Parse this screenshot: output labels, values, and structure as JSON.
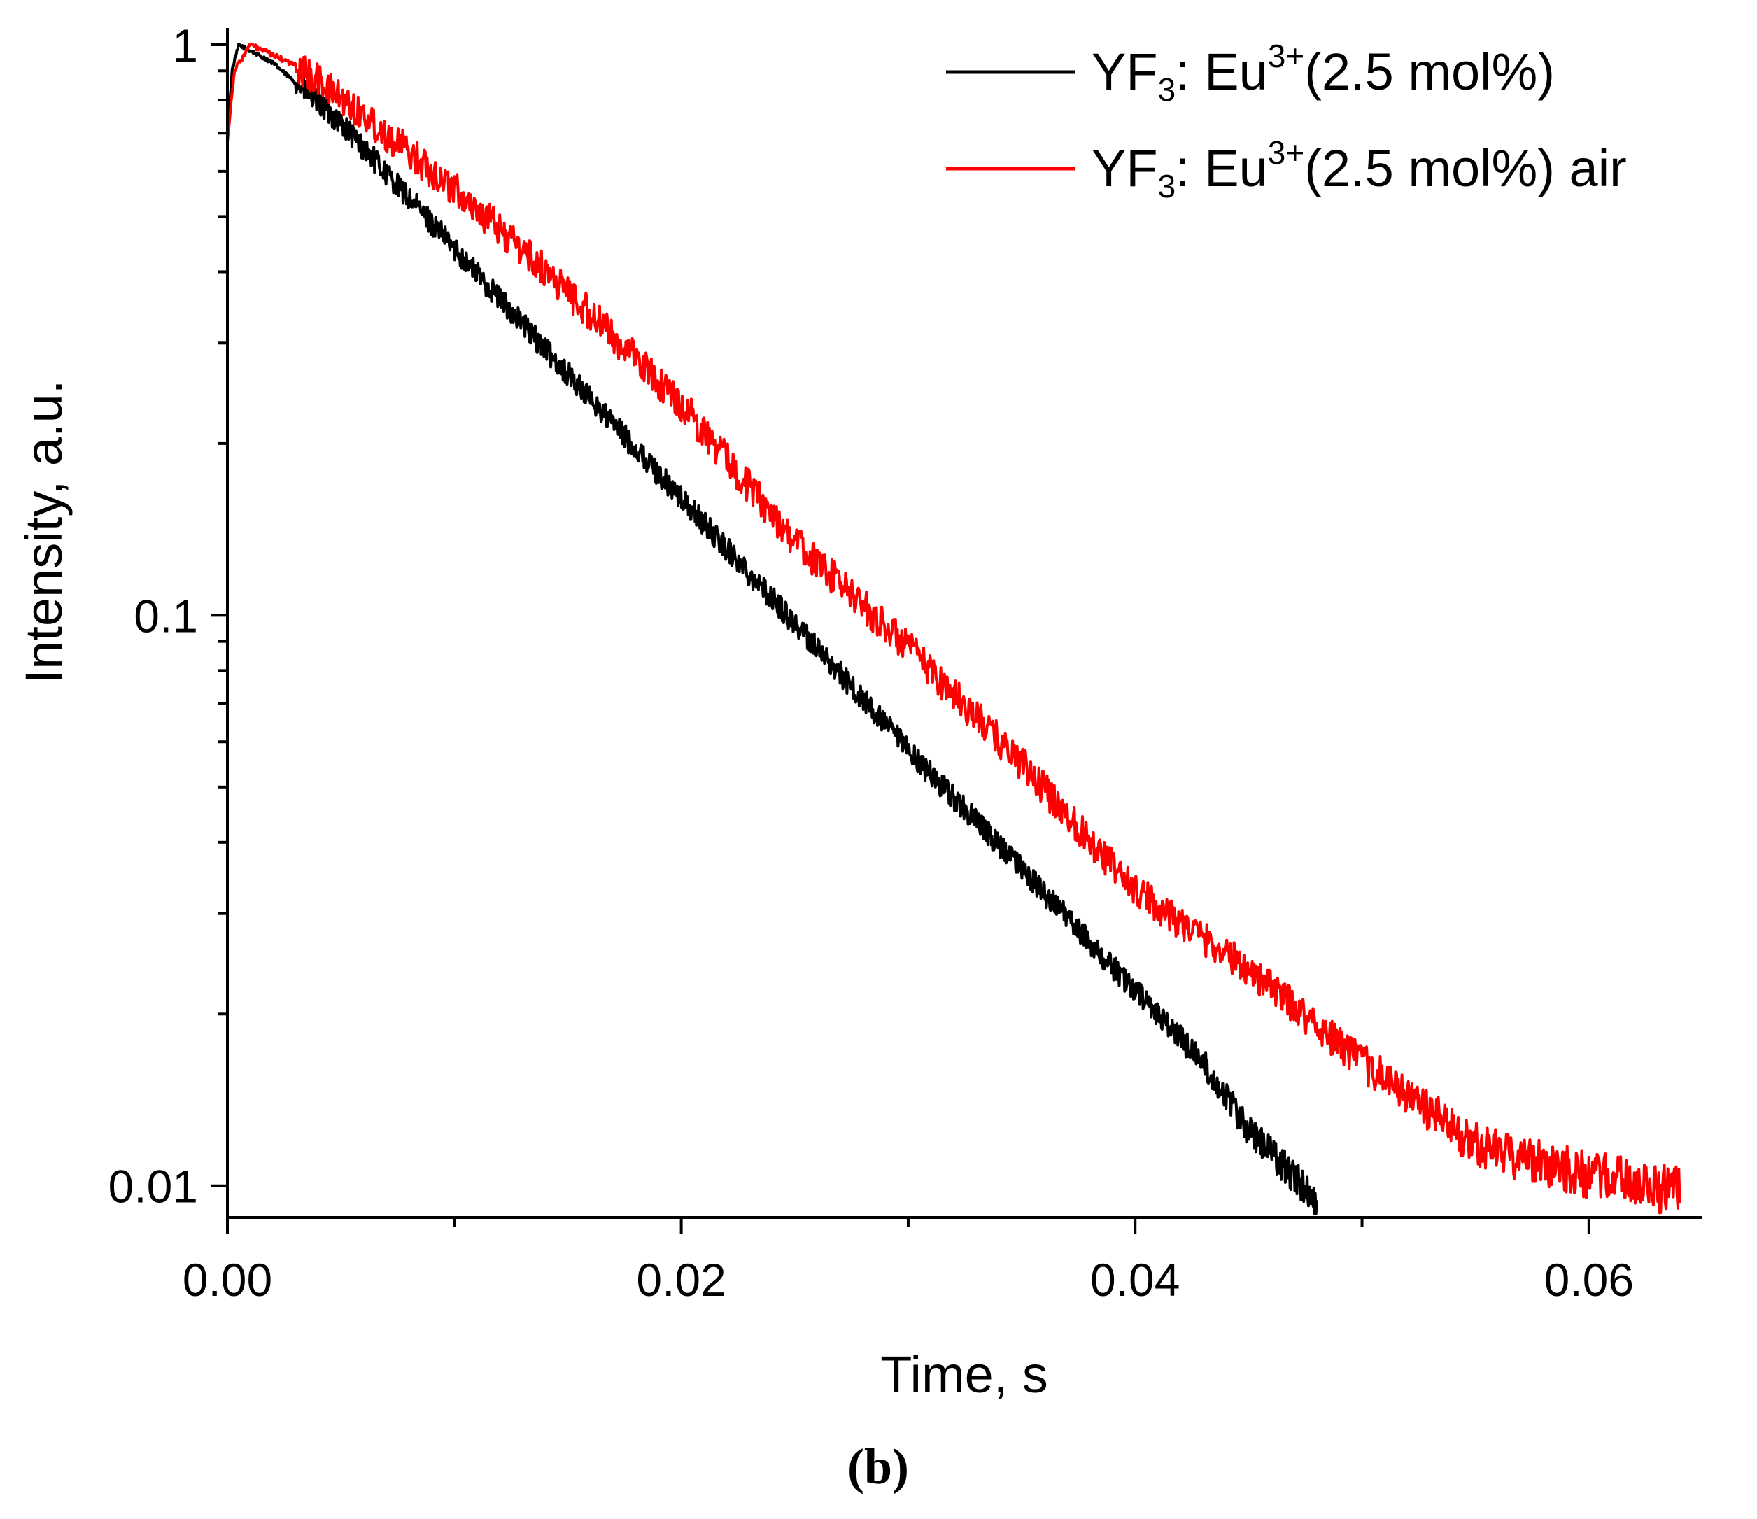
{
  "chart_data": {
    "type": "line",
    "title": "",
    "xlabel": "Time, s",
    "ylabel": "Intensity, a.u.",
    "yscale": "log",
    "xlim": [
      0.0,
      0.065
    ],
    "ylim": [
      0.0088,
      1.07
    ],
    "x_ticks": [
      {
        "value": 0.0,
        "label": "0.00"
      },
      {
        "value": 0.02,
        "label": "0.02"
      },
      {
        "value": 0.04,
        "label": "0.04"
      },
      {
        "value": 0.06,
        "label": "0.06"
      }
    ],
    "x_minor_ticks": [
      0.01,
      0.03,
      0.05
    ],
    "y_ticks": [
      {
        "value": 1,
        "label": "1"
      },
      {
        "value": 0.1,
        "label": "0.1"
      },
      {
        "value": 0.01,
        "label": "0.01"
      }
    ],
    "y_minor_ticks": [
      0.9,
      0.8,
      0.7,
      0.6,
      0.5,
      0.4,
      0.3,
      0.2,
      0.09,
      0.08,
      0.07,
      0.06,
      0.05,
      0.04,
      0.03,
      0.02
    ],
    "legend_position": "top-right",
    "series": [
      {
        "name": "YF3: Eu3+(2.5 mol%)",
        "legend": {
          "base": "YF",
          "sub": "3",
          "mid": ": Eu",
          "sup": "3+",
          "tail": "(2.5 mol%)"
        },
        "color": "#000000",
        "noise": 0.05,
        "points": [
          [
            0.0,
            0.68
          ],
          [
            0.0002,
            0.9
          ],
          [
            0.0005,
            1.0
          ],
          [
            0.002,
            0.93
          ],
          [
            0.005,
            0.73
          ],
          [
            0.01,
            0.44
          ],
          [
            0.015,
            0.265
          ],
          [
            0.02,
            0.16
          ],
          [
            0.025,
            0.097
          ],
          [
            0.03,
            0.058
          ],
          [
            0.035,
            0.036
          ],
          [
            0.04,
            0.022
          ],
          [
            0.043,
            0.0165
          ],
          [
            0.045,
            0.0125
          ],
          [
            0.048,
            0.0095
          ]
        ]
      },
      {
        "name": "YF3: Eu3+(2.5 mol%) air",
        "legend": {
          "base": "YF",
          "sub": "3",
          "mid": ": Eu",
          "sup": "3+",
          "tail": "(2.5 mol%) air"
        },
        "color": "#ff0000",
        "noise": 0.07,
        "points": [
          [
            0.0,
            0.68
          ],
          [
            0.0003,
            0.9
          ],
          [
            0.001,
            1.0
          ],
          [
            0.003,
            0.92
          ],
          [
            0.005,
            0.81
          ],
          [
            0.01,
            0.56
          ],
          [
            0.015,
            0.37
          ],
          [
            0.02,
            0.235
          ],
          [
            0.025,
            0.135
          ],
          [
            0.03,
            0.088
          ],
          [
            0.035,
            0.055
          ],
          [
            0.04,
            0.033
          ],
          [
            0.045,
            0.024
          ],
          [
            0.05,
            0.0165
          ],
          [
            0.055,
            0.0118
          ],
          [
            0.06,
            0.0105
          ],
          [
            0.064,
            0.0098
          ]
        ]
      }
    ],
    "panel_label": "(b)"
  }
}
